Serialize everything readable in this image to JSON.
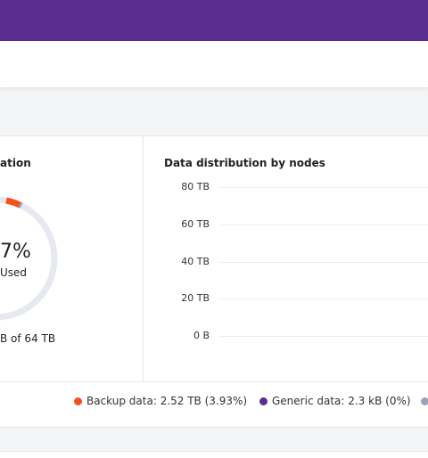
{
  "storage_card": {
    "title": "ation",
    "usage": {
      "percent": "7%",
      "caption": "Used",
      "capacity": "B of 64 TB"
    },
    "distribution": {
      "title": "Data distribution by nodes",
      "y_ticks": [
        "80 TB",
        "60 TB",
        "40 TB",
        "20 TB",
        "0 B"
      ]
    },
    "legend": [
      {
        "label": "Backup data: 2.52 TB (3.93%)",
        "color": "#f4511e"
      },
      {
        "label": "Generic data: 2.3 kB (0%)",
        "color": "#5b2d90"
      },
      {
        "color": "#9aa3b5"
      }
    ]
  }
}
